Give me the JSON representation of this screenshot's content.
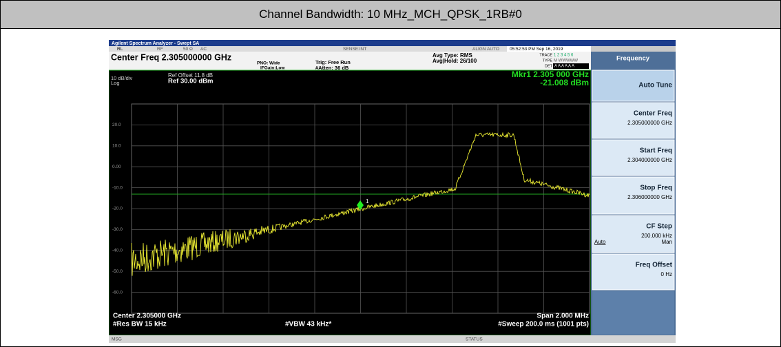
{
  "header": {
    "title": "Channel Bandwidth: 10 MHz_MCH_QPSK_1RB#0"
  },
  "titlebar": "Agilent Spectrum Analyzer - Swept SA",
  "status": {
    "rl": "RL",
    "rf": "RF",
    "impedance": "50 Ω",
    "coupling": "AC",
    "sense": "SENSE:INT",
    "align": "ALIGN AUTO",
    "datetime": "05:52:53 PM Sep 16, 2019"
  },
  "settings": {
    "center_freq": "Center Freq 2.305000000 GHz",
    "pno": "PNO: Wide",
    "ifgain": "IFGain:Low",
    "trig": "Trig: Free Run",
    "atten": "#Atten: 36 dB",
    "avg_type": "Avg Type: RMS",
    "avg_hold": "Avg|Hold: 26/100",
    "trace_label": "TRACE",
    "trace": "1 2 3 4 5 6",
    "type_label": "TYPE",
    "type": "M WWWWW",
    "det_label": "DET",
    "det": "A A A A A A"
  },
  "display": {
    "scale": "10 dB/div",
    "log": "Log",
    "ref_offset": "Ref Offset 11.8 dB",
    "ref": "Ref 30.00 dBm",
    "marker_freq": "Mkr1 2.305 000 GHz",
    "marker_level": "-21.008 dBm",
    "marker_name": "1",
    "y_labels": [
      "20.0",
      "10.0",
      "0.00",
      "-10.0",
      "-20.0",
      "-30.0",
      "-40.0",
      "-50.0",
      "-60.0"
    ],
    "center": "Center 2.305000 GHz",
    "res_bw": "#Res BW 15 kHz",
    "vbw": "#VBW 43 kHz*",
    "span": "Span 2.000 MHz",
    "sweep": "#Sweep 200.0 ms (1001 pts)"
  },
  "menu": {
    "title": "Frequency",
    "buttons": [
      {
        "label": "Auto Tune"
      },
      {
        "label": "Center Freq",
        "value": "2.305000000 GHz"
      },
      {
        "label": "Start Freq",
        "value": "2.304000000 GHz"
      },
      {
        "label": "Stop Freq",
        "value": "2.306000000 GHz"
      },
      {
        "label": "CF Step",
        "value": "200.000 kHz",
        "options": [
          "Auto",
          "Man"
        ]
      },
      {
        "label": "Freq Offset",
        "value": "0 Hz"
      }
    ]
  },
  "footer": {
    "msg": "MSG",
    "status": "STATUS"
  }
}
